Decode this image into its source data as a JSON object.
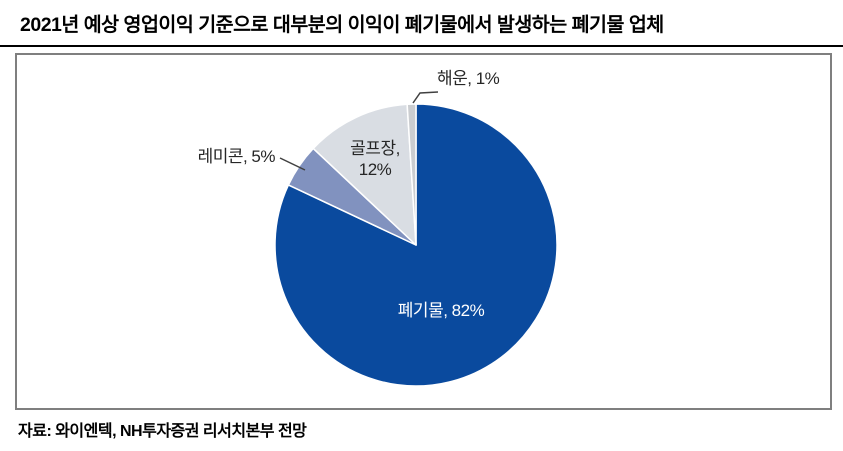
{
  "page": {
    "title": "2021년 예상 영업이익 기준으로 대부분의 이익이 폐기물에서 발생하는 폐기물 업체",
    "source": "자료: 와이엔텍, NH투자증권 리서치본부 전망"
  },
  "chart_data": {
    "type": "pie",
    "title": "2021년 예상 영업이익 기준으로 대부분의 이익이 폐기물에서 발생하는 폐기물 업체",
    "unit": "%",
    "start_angle_deg": 0,
    "direction": "clockwise",
    "categories": [
      "폐기물",
      "레미콘",
      "골프장",
      "해운"
    ],
    "values": [
      82,
      5,
      12,
      1
    ],
    "slices": [
      {
        "key": "waste",
        "label": "폐기물",
        "value": 82,
        "display": "폐기물, 82%",
        "color": "#0A4A9E",
        "label_color": "#FFFFFF",
        "label_position": "inside"
      },
      {
        "key": "remicon",
        "label": "레미콘",
        "value": 5,
        "display": "레미콘, 5%",
        "color": "#8192BF",
        "label_color": "#262626",
        "label_position": "outside"
      },
      {
        "key": "golf-course",
        "label": "골프장",
        "value": 12,
        "display": "골프장, 12%",
        "lines": [
          "골프장,",
          "12%"
        ],
        "color": "#D9DDE3",
        "label_color": "#262626",
        "label_position": "inside"
      },
      {
        "key": "shipping",
        "label": "해운",
        "value": 1,
        "display": "해운, 1%",
        "color": "#CBCDD0",
        "label_color": "#262626",
        "label_position": "outside"
      }
    ],
    "layout": {
      "legend": "none",
      "grid": "off",
      "frame_border_color": "#7f7f7f",
      "slice_separator_color": "#ffffff",
      "leader_line_color": "#404040"
    }
  }
}
